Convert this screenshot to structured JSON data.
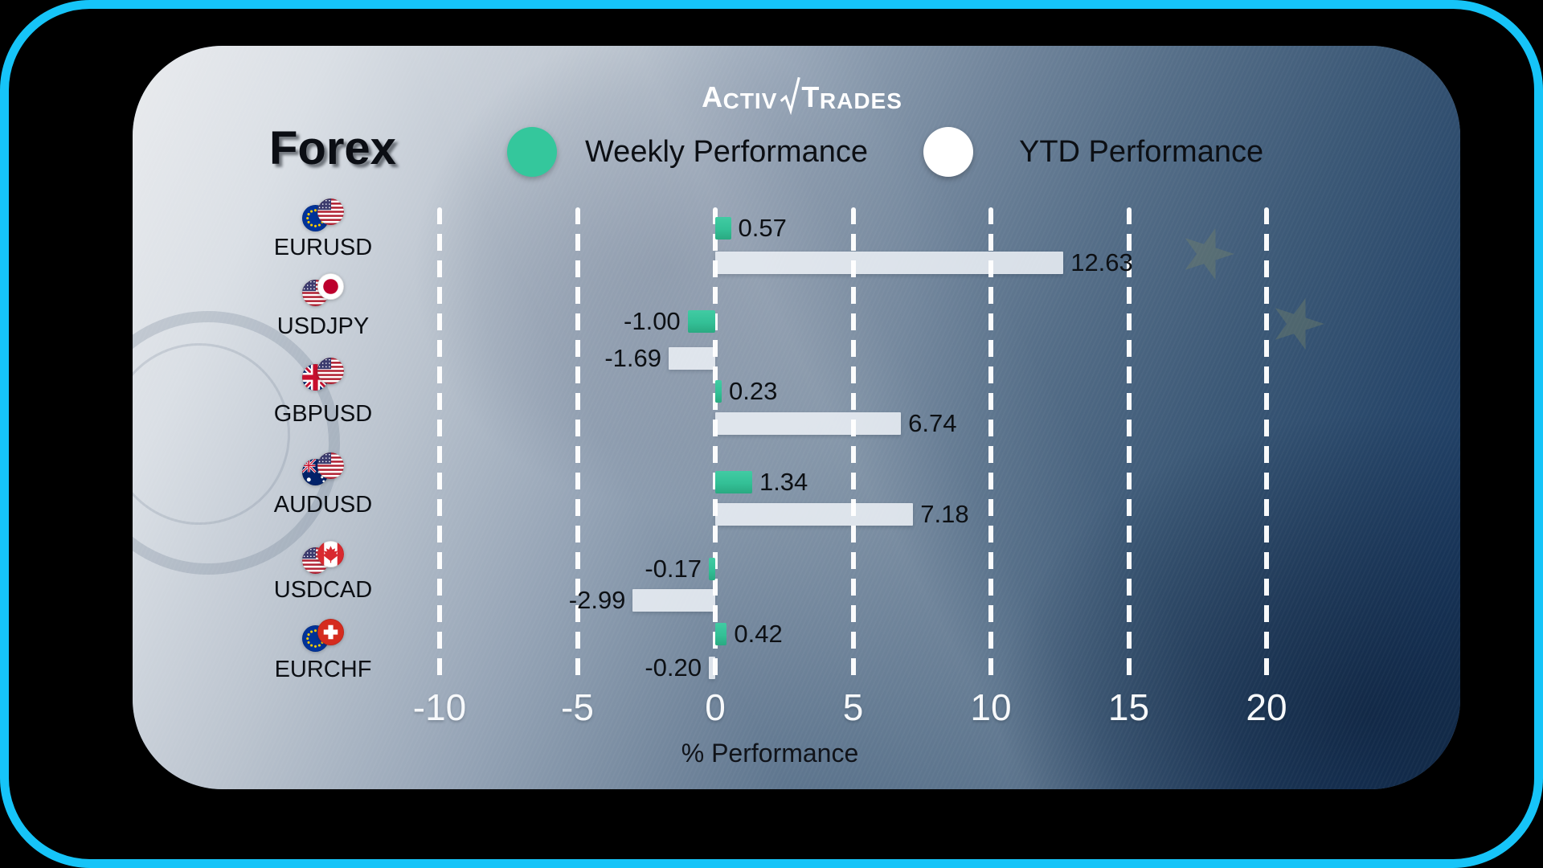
{
  "brand": {
    "p1_cap": "A",
    "p1_rest": "CTIV",
    "p2_cap": "T",
    "p2_rest": "RADES"
  },
  "header": {
    "title": "Forex"
  },
  "legend": {
    "items": [
      {
        "label": "Weekly Performance",
        "color": "#34c79c"
      },
      {
        "label": "YTD Performance",
        "color": "#ffffff"
      }
    ]
  },
  "chart_data": {
    "type": "bar",
    "orientation": "horizontal",
    "title": "Forex",
    "xlabel": "% Performance",
    "axis": {
      "min": -10,
      "max": 20,
      "step": 5,
      "ticks": [
        -10,
        -5,
        0,
        5,
        10,
        15,
        20
      ],
      "gridlines": "dashed-white"
    },
    "legend_position": "top",
    "categories": [
      "EURUSD",
      "USDJPY",
      "GBPUSD",
      "AUDUSD",
      "USDCAD",
      "EURCHF"
    ],
    "series": [
      {
        "name": "Weekly Performance",
        "color": "#34c79c",
        "values": [
          0.57,
          -1.0,
          0.23,
          1.34,
          -0.17,
          0.42
        ]
      },
      {
        "name": "YTD Performance",
        "color": "#e9edf2",
        "values": [
          12.63,
          -1.69,
          6.74,
          7.18,
          -2.99,
          -0.2
        ]
      }
    ],
    "rows": [
      {
        "pair": "EURUSD",
        "flags": [
          "eu",
          "us"
        ],
        "weekly": 0.57,
        "weekly_label": "0.57",
        "ytd": 12.63,
        "ytd_label": "12.63"
      },
      {
        "pair": "USDJPY",
        "flags": [
          "us",
          "jp"
        ],
        "weekly": -1.0,
        "weekly_label": "-1.00",
        "ytd": -1.69,
        "ytd_label": "-1.69"
      },
      {
        "pair": "GBPUSD",
        "flags": [
          "gb",
          "us"
        ],
        "weekly": 0.23,
        "weekly_label": "0.23",
        "ytd": 6.74,
        "ytd_label": "6.74"
      },
      {
        "pair": "AUDUSD",
        "flags": [
          "au",
          "us"
        ],
        "weekly": 1.34,
        "weekly_label": "1.34",
        "ytd": 7.18,
        "ytd_label": "7.18"
      },
      {
        "pair": "USDCAD",
        "flags": [
          "us",
          "ca"
        ],
        "weekly": -0.17,
        "weekly_label": "-0.17",
        "ytd": -2.99,
        "ytd_label": "-2.99"
      },
      {
        "pair": "EURCHF",
        "flags": [
          "eu",
          "ch"
        ],
        "weekly": 0.42,
        "weekly_label": "0.42",
        "ytd": -0.2,
        "ytd_label": "-0.20"
      }
    ]
  },
  "colors": {
    "frame_border": "#16c4f8",
    "background_outer": "#000000",
    "weekly_bar": "#34c79c",
    "ytd_bar": "#e9edf2",
    "gridline": "#ffffff",
    "tick_text": "#ffffff",
    "text": "#0d1014"
  }
}
